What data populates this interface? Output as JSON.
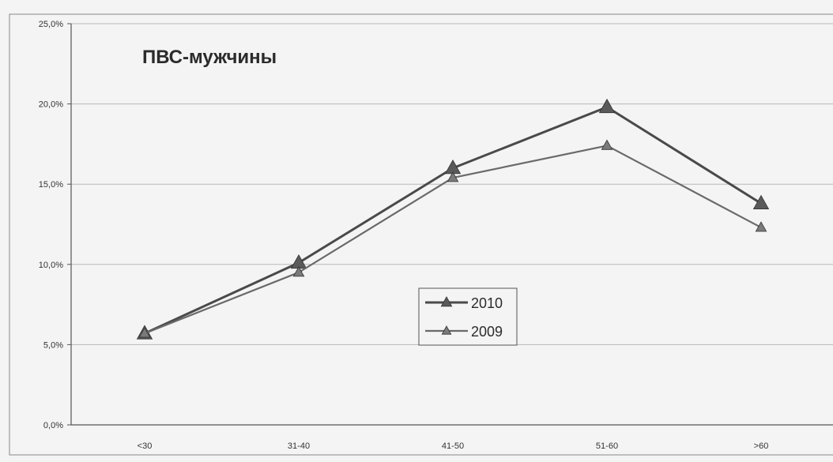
{
  "chart_data": {
    "type": "line",
    "title": "ПВС-мужчины",
    "categories": [
      "<30",
      "31-40",
      "41-50",
      "51-60",
      ">60"
    ],
    "y_tick_labels": [
      "0,0%",
      "5,0%",
      "10,0%",
      "15,0%",
      "20,0%",
      "25,0%"
    ],
    "ylim": [
      0,
      25
    ],
    "grid": true,
    "legend_position": "center",
    "series": [
      {
        "name": "2010",
        "values": [
          5.7,
          10.1,
          16.0,
          19.8,
          13.8
        ],
        "color": "#4a4a4a",
        "marker": "triangle"
      },
      {
        "name": "2009",
        "values": [
          5.7,
          9.5,
          15.4,
          17.4,
          12.3
        ],
        "color": "#6a6a6a",
        "marker": "triangle"
      }
    ]
  }
}
